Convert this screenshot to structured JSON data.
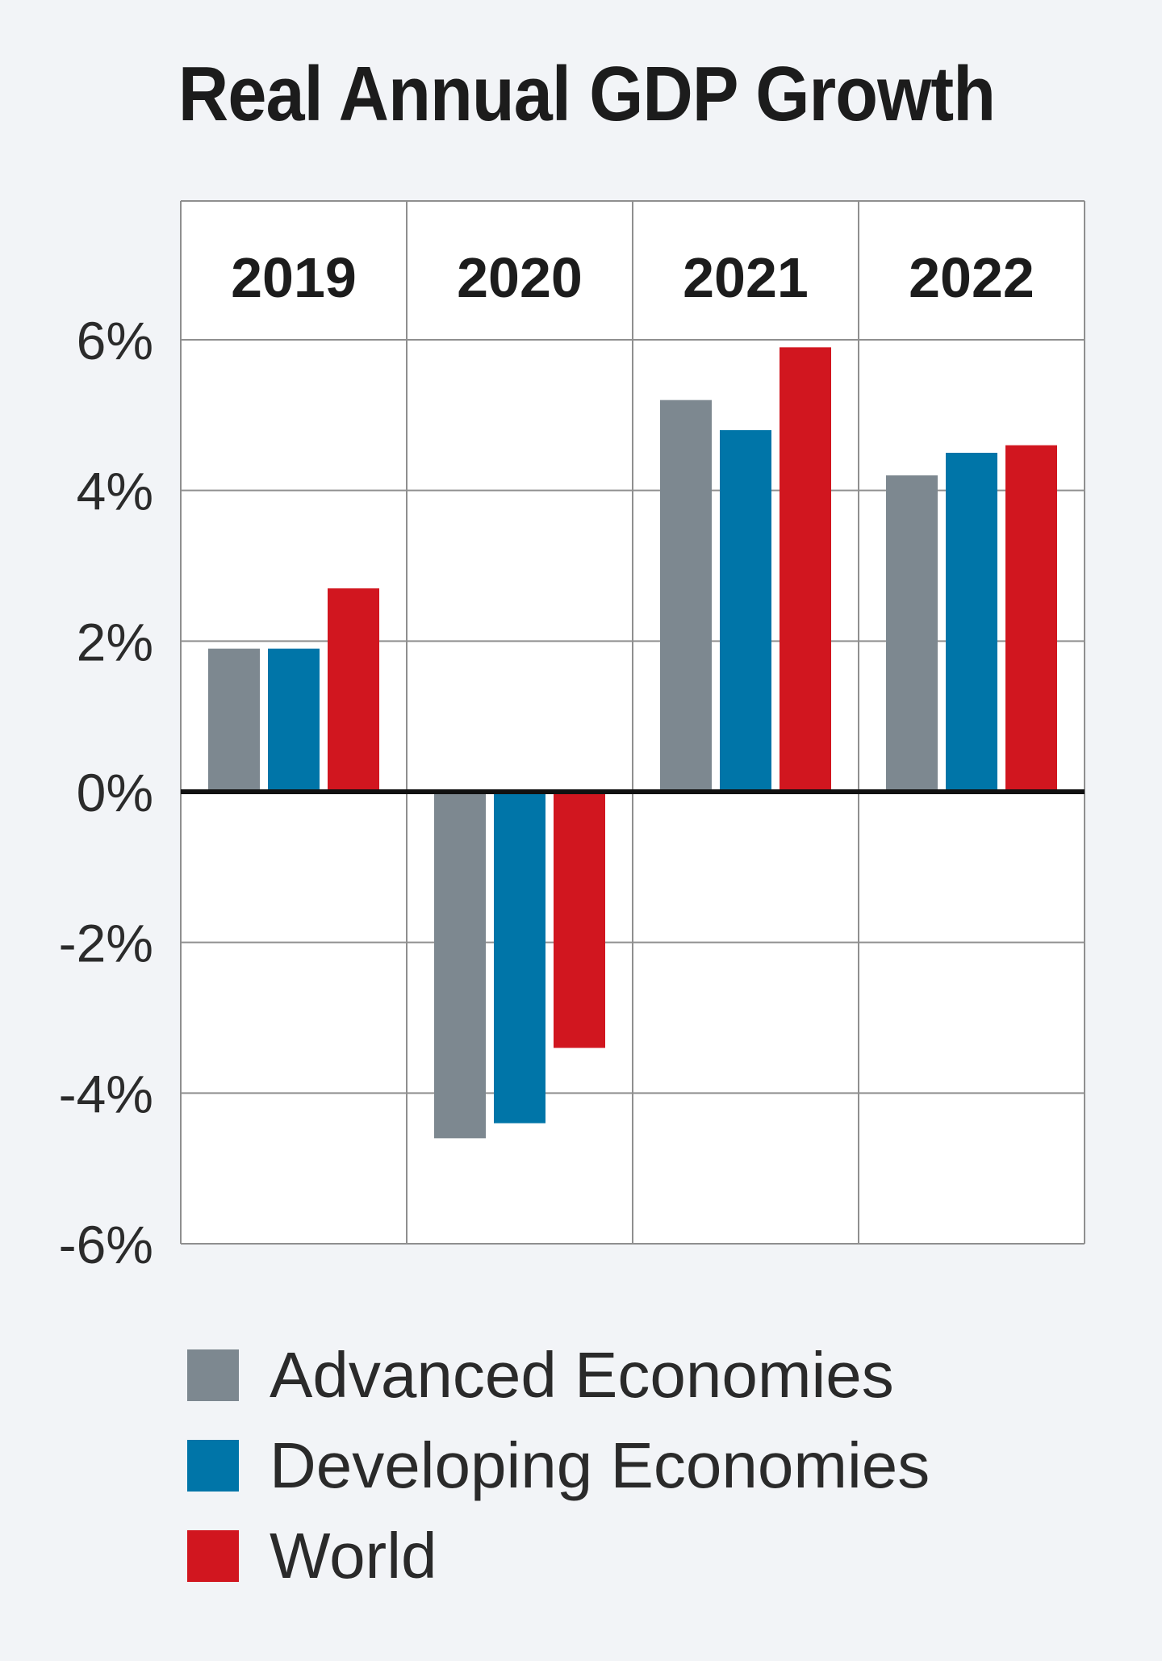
{
  "chart_data": {
    "type": "bar",
    "title": "Real Annual GDP Growth",
    "categories": [
      "2019",
      "2020",
      "2021",
      "2022"
    ],
    "series": [
      {
        "name": "Advanced Economies",
        "color": "#7d8890",
        "values": [
          1.9,
          -4.6,
          5.2,
          4.2
        ]
      },
      {
        "name": "Developing Economies",
        "color": "#0075a8",
        "values": [
          1.9,
          -4.4,
          4.8,
          4.5
        ]
      },
      {
        "name": "World",
        "color": "#d1161f",
        "values": [
          2.7,
          -3.4,
          5.9,
          4.6
        ]
      }
    ],
    "yticks": [
      "6%",
      "4%",
      "2%",
      "0%",
      "-2%",
      "-4%",
      "-6%"
    ],
    "ylim": [
      -6,
      6
    ],
    "grid": true,
    "legend_position": "bottom"
  }
}
